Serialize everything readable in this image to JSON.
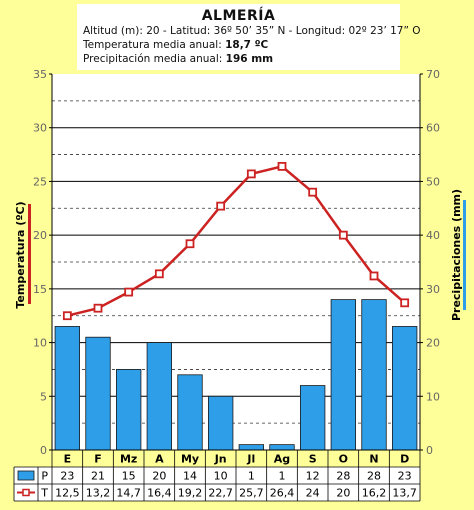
{
  "header": {
    "title": "ALMERÍA",
    "line1": "Altitud (m): 20 - Latitud: 36º 50’ 35” N - Longitud: 02º 23’ 17” O",
    "temp_label": "Temperatura media anual:",
    "temp_value": "18,7 ºC",
    "precip_label": "Precipitación media anual:",
    "precip_value": "196 mm"
  },
  "colors": {
    "bar_fill": "#2e9ee8",
    "line": "#cc2222",
    "marker_fill": "#ffffff",
    "background": "#ffff99",
    "temp_axis_accent": "#cc2222",
    "precip_axis_accent": "#2e9ee8"
  },
  "chart_data": {
    "type": "bar+line",
    "categories": [
      "E",
      "F",
      "Mz",
      "A",
      "My",
      "Jn",
      "Jl",
      "Ag",
      "S",
      "O",
      "N",
      "D"
    ],
    "series": [
      {
        "name": "P",
        "type": "bar",
        "axis": "right",
        "values": [
          23,
          21,
          15,
          20,
          14,
          10,
          1,
          1,
          12,
          28,
          28,
          23
        ]
      },
      {
        "name": "T",
        "type": "line",
        "axis": "left",
        "values": [
          12.5,
          13.2,
          14.7,
          16.4,
          19.2,
          22.7,
          25.7,
          26.4,
          24,
          20,
          16.2,
          13.7
        ]
      }
    ],
    "table_values": {
      "P": [
        "23",
        "21",
        "15",
        "20",
        "14",
        "10",
        "1",
        "1",
        "12",
        "28",
        "28",
        "23"
      ],
      "T": [
        "12,5",
        "13,2",
        "14,7",
        "16,4",
        "19,2",
        "22,7",
        "25,7",
        "26,4",
        "24",
        "20",
        "16,2",
        "13,7"
      ]
    },
    "ylabel_left": "Temperatura (ºC)",
    "ylabel_right": "Precipitaciones (mm)",
    "ylim_left": [
      0,
      35
    ],
    "ylim_right": [
      0,
      70
    ],
    "yticks_left": [
      0,
      5,
      10,
      15,
      20,
      25,
      30,
      35
    ],
    "yticks_right": [
      0,
      10,
      20,
      30,
      40,
      50,
      60,
      70
    ],
    "grid": true
  }
}
